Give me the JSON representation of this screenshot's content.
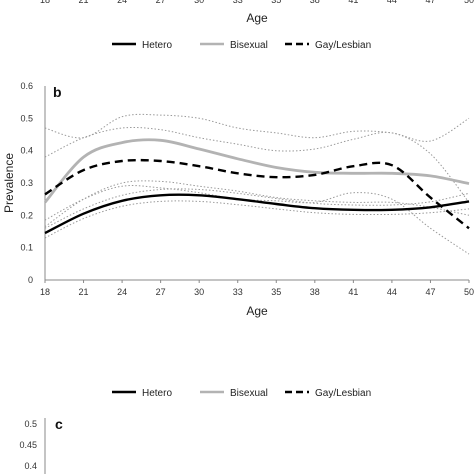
{
  "panel_a_partial": {
    "tick_labels": [
      "18",
      "21",
      "24",
      "27",
      "30",
      "33",
      "35",
      "38",
      "41",
      "44",
      "47",
      "50"
    ],
    "xlabel": "Age",
    "legend": [
      "Hetero",
      "Bisexual",
      "Gay/Lesbian"
    ]
  },
  "panel_c_partial": {
    "panel_letter": "c",
    "y_ticks": [
      "0.5",
      "0.45",
      "0.4"
    ]
  },
  "chart_data": {
    "type": "line",
    "panel_letter": "b",
    "x": [
      "18",
      "21",
      "24",
      "27",
      "30",
      "33",
      "35",
      "38",
      "41",
      "44",
      "47",
      "50"
    ],
    "xlabel": "Age",
    "ylabel": "Prevalence",
    "ylim": [
      0,
      0.6
    ],
    "y_ticks": [
      "0",
      "0.1",
      "0.2",
      "0.3",
      "0.4",
      "0.5",
      "0.6"
    ],
    "grid": false,
    "legend_position": "bottom",
    "series": [
      {
        "name": "Hetero",
        "style": "solid",
        "color": "#000000",
        "values": [
          0.145,
          0.205,
          0.245,
          0.262,
          0.262,
          0.25,
          0.235,
          0.222,
          0.217,
          0.217,
          0.225,
          0.243
        ]
      },
      {
        "name": "Bisexual",
        "style": "solid",
        "color": "#b3b3b3",
        "values": [
          0.24,
          0.38,
          0.425,
          0.432,
          0.405,
          0.375,
          0.348,
          0.333,
          0.33,
          0.33,
          0.322,
          0.298
        ]
      },
      {
        "name": "Gay/Lesbian",
        "style": "dashed",
        "color": "#000000",
        "values": [
          0.265,
          0.34,
          0.368,
          0.368,
          0.352,
          0.33,
          0.318,
          0.325,
          0.352,
          0.355,
          0.255,
          0.16
        ]
      }
    ],
    "confidence_bands": [
      {
        "of": "Hetero",
        "lower": [
          0.13,
          0.19,
          0.228,
          0.243,
          0.243,
          0.233,
          0.22,
          0.208,
          0.203,
          0.203,
          0.208,
          0.22
        ],
        "upper": [
          0.16,
          0.22,
          0.262,
          0.28,
          0.28,
          0.268,
          0.252,
          0.237,
          0.232,
          0.232,
          0.242,
          0.268
        ]
      },
      {
        "of": "Bisexual",
        "lower": [
          0.165,
          0.25,
          0.3,
          0.305,
          0.29,
          0.275,
          0.255,
          0.245,
          0.24,
          0.24,
          0.225,
          0.2
        ],
        "upper": [
          0.47,
          0.44,
          0.505,
          0.51,
          0.5,
          0.47,
          0.455,
          0.44,
          0.46,
          0.455,
          0.43,
          0.5
        ]
      },
      {
        "of": "Gay/Lesbian",
        "lower": [
          0.185,
          0.25,
          0.29,
          0.285,
          0.27,
          0.25,
          0.245,
          0.24,
          0.27,
          0.25,
          0.16,
          0.08
        ],
        "upper": [
          0.38,
          0.44,
          0.47,
          0.465,
          0.44,
          0.42,
          0.4,
          0.405,
          0.435,
          0.455,
          0.39,
          0.24
        ]
      }
    ]
  }
}
